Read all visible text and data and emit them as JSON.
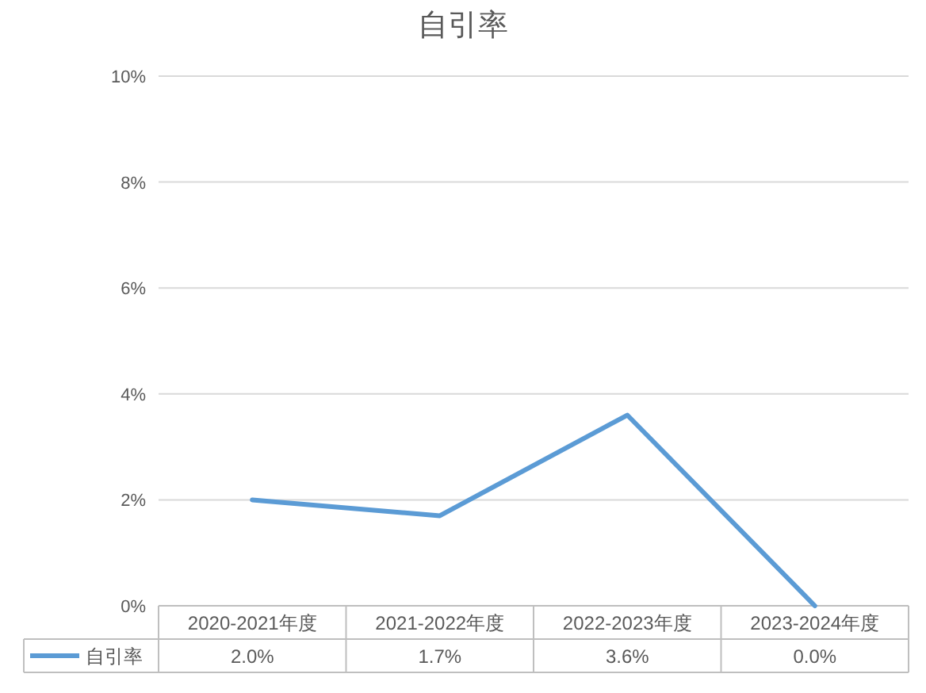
{
  "chart_data": {
    "type": "line",
    "title": "自引率",
    "categories": [
      "2020-2021年度",
      "2021-2022年度",
      "2022-2023年度",
      "2023-2024年度"
    ],
    "series": [
      {
        "name": "自引率",
        "color": "#5b9bd5",
        "values": [
          2.0,
          1.7,
          3.6,
          0.0
        ],
        "value_labels": [
          "2.0%",
          "1.7%",
          "3.6%",
          "0.0%"
        ]
      }
    ],
    "ylim": [
      0,
      10
    ],
    "yticks": [
      {
        "value": 0,
        "label": "0%"
      },
      {
        "value": 2,
        "label": "2%"
      },
      {
        "value": 4,
        "label": "4%"
      },
      {
        "value": 6,
        "label": "6%"
      },
      {
        "value": 8,
        "label": "8%"
      },
      {
        "value": 10,
        "label": "10%"
      }
    ],
    "grid": "y",
    "legend": "bottom",
    "marker": "none",
    "line_style": "solid"
  }
}
